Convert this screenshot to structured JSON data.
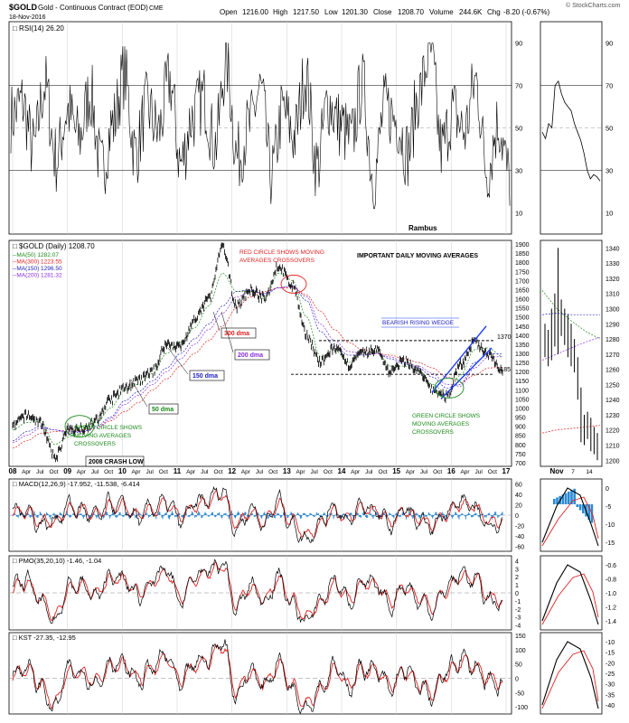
{
  "header": {
    "symbol": "$GOLD",
    "description": "Gold - Continuous Contract (EOD)",
    "exchange": "CME",
    "date": "18-Nov-2016",
    "open_label": "Open",
    "open": "1216.00",
    "high_label": "High",
    "high": "1217.50",
    "low_label": "Low",
    "low": "1201.30",
    "close_label": "Close",
    "close": "1208.70",
    "volume_label": "Volume",
    "volume": "244.6K",
    "chg_label": "Chg",
    "chg": "-8.20 (-0.67%)",
    "watermark": "© StockCharts.com"
  },
  "colors": {
    "price": "#000000",
    "ma50": "#1a8a1a",
    "ma300": "#e02020",
    "ma150": "#2020c0",
    "ma200": "#8a2be2",
    "annotation_red": "#e02020",
    "annotation_green": "#1a8a1a",
    "annotation_blue": "#2020c0",
    "annotation_purple": "#8a2be2",
    "macd_hist": "#2a8ad4"
  },
  "rsi": {
    "label": "RSI(14)",
    "value": "26.20",
    "ticks": [
      "90",
      "70",
      "50",
      "30",
      "10"
    ],
    "tick_values": [
      90,
      70,
      50,
      30,
      10
    ],
    "range": [
      0,
      100
    ],
    "overbought": 70,
    "oversold": 30,
    "note": "Rambus"
  },
  "price_panel": {
    "label": "$GOLD (Daily)",
    "value": "1208.70",
    "ma_labels": [
      {
        "text": "MA(50)",
        "value": "1282.07",
        "color": "#1a8a1a"
      },
      {
        "text": "MA(300)",
        "value": "1223.55",
        "color": "#e02020"
      },
      {
        "text": "MA(150)",
        "value": "1296.50",
        "color": "#2020c0"
      },
      {
        "text": "MA(200)",
        "value": "1281.32",
        "color": "#8a2be2"
      }
    ],
    "ticks": [
      "1900",
      "1850",
      "1800",
      "1750",
      "1700",
      "1650",
      "1600",
      "1550",
      "1500",
      "1450",
      "1400",
      "1350",
      "1300",
      "1250",
      "1200",
      "1150",
      "1100",
      "1050",
      "1000",
      "950",
      "900",
      "850",
      "800",
      "750",
      "700"
    ],
    "range": [
      680,
      1920
    ],
    "levels": {
      "resistance": "1370",
      "support": "1185"
    },
    "annotations": {
      "red_circle": "RED CIRCLE SHOWS MOVING AVERAGES CROSSOVERS",
      "title": "IMPORTANT DAILY MOVING AVERAGES",
      "wedge": "BEARISH RISING WEDGE",
      "green_left": "GREEN CIRCLE SHOWS MOVING AVERAGES CROSSOVERS",
      "green_right": "GREEN CIRCLE SHOWS MOVING AVERAGES CROSSOVERS",
      "dma300": "300 dma",
      "dma200": "200 dma",
      "dma150": "150 dma",
      "dma50": "50 dma",
      "crash": "2008 CRASH LOW"
    }
  },
  "x_axis": {
    "labels": [
      "08",
      "Apr",
      "Jul",
      "Oct",
      "09",
      "Apr",
      "Jul",
      "Oct",
      "10",
      "Apr",
      "Jul",
      "Oct",
      "11",
      "Apr",
      "Jul",
      "Oct",
      "12",
      "Apr",
      "Jul",
      "Oct",
      "13",
      "Apr",
      "Jul",
      "Oct",
      "14",
      "Apr",
      "Jul",
      "Oct",
      "15",
      "Apr",
      "Jul",
      "Oct",
      "16",
      "Apr",
      "Jul",
      "Oct",
      "17"
    ],
    "years": [
      "08",
      "09",
      "10",
      "11",
      "12",
      "13",
      "14",
      "15",
      "16",
      "17"
    ]
  },
  "macd": {
    "label": "MACD(12,26,9)",
    "v1": "-17.952",
    "v2": "-11.538",
    "v3": "-6.414",
    "ticks": [
      "60",
      "40",
      "20",
      "0",
      "-20",
      "-40",
      "-60"
    ],
    "range": [
      -70,
      70
    ]
  },
  "pmo": {
    "label": "PMO(35,20,10)",
    "v1": "-1.46",
    "v2": "-1.04",
    "ticks": [
      "4",
      "3",
      "2",
      "1",
      "0",
      "-1",
      "-2",
      "-3",
      "-4"
    ],
    "range": [
      -4.6,
      4.6
    ]
  },
  "kst": {
    "label": "KST",
    "v1": "-27.35",
    "v2": "-12.95",
    "ticks": [
      "150",
      "100",
      "50",
      "0",
      "-50",
      "-100"
    ],
    "range": [
      -125,
      160
    ]
  },
  "side": {
    "rsi_ticks": [
      "90",
      "70",
      "50",
      "30",
      "10"
    ],
    "price_ticks": [
      "1340",
      "1330",
      "1320",
      "1310",
      "1300",
      "1290",
      "1280",
      "1270",
      "1260",
      "1250",
      "1240",
      "1230",
      "1220",
      "1210",
      "1200"
    ],
    "price_range": [
      1196,
      1345
    ],
    "x_labels": [
      "Nov",
      "7",
      "14"
    ],
    "macd_ticks": [
      "0",
      "-5",
      "-10",
      "-15"
    ],
    "pmo_ticks": [
      "-0.6",
      "-0.8",
      "-1.0",
      "-1.2",
      "-1.4"
    ],
    "kst_ticks": [
      "-10",
      "-15",
      "-20",
      "-25",
      "-30",
      "-35",
      "-40"
    ]
  },
  "chart_data": [
    {
      "type": "line",
      "title": "RSI(14)",
      "ylim": [
        0,
        100
      ],
      "series": [
        {
          "name": "RSI(14)",
          "values": [
            55,
            62,
            40,
            70,
            35,
            58,
            45,
            66,
            30,
            52,
            75,
            38,
            60,
            48,
            72,
            33,
            55,
            64,
            42,
            80,
            36,
            50,
            68,
            28,
            58,
            46,
            74,
            32,
            62,
            52,
            44,
            70,
            26,
            60,
            54,
            38,
            66,
            86,
            40,
            58,
            48,
            72,
            30,
            52,
            26.2
          ]
        }
      ]
    },
    {
      "type": "line",
      "title": "$GOLD (Daily)",
      "ylim": [
        680,
        1920
      ],
      "x": [
        "2008-01",
        "2008-04",
        "2008-07",
        "2008-10",
        "2009-01",
        "2009-04",
        "2009-07",
        "2009-10",
        "2010-01",
        "2010-04",
        "2010-07",
        "2010-10",
        "2011-01",
        "2011-04",
        "2011-07",
        "2011-09",
        "2011-12",
        "2012-04",
        "2012-07",
        "2012-10",
        "2013-01",
        "2013-04",
        "2013-07",
        "2013-10",
        "2014-01",
        "2014-04",
        "2014-07",
        "2014-10",
        "2015-01",
        "2015-04",
        "2015-07",
        "2015-12",
        "2016-03",
        "2016-07",
        "2016-10",
        "2016-11"
      ],
      "series": [
        {
          "name": "$GOLD",
          "values": [
            900,
            960,
            920,
            730,
            880,
            890,
            930,
            1050,
            1110,
            1150,
            1200,
            1350,
            1340,
            1480,
            1600,
            1880,
            1560,
            1650,
            1600,
            1780,
            1670,
            1400,
            1250,
            1330,
            1240,
            1300,
            1320,
            1200,
            1260,
            1200,
            1100,
            1060,
            1240,
            1360,
            1300,
            1208.7
          ]
        },
        {
          "name": "MA(50)",
          "values": [
            880,
            920,
            930,
            800,
            840,
            900,
            920,
            1000,
            1100,
            1130,
            1190,
            1300,
            1360,
            1440,
            1560,
            1740,
            1640,
            1640,
            1600,
            1740,
            1700,
            1500,
            1280,
            1320,
            1250,
            1300,
            1310,
            1230,
            1230,
            1210,
            1130,
            1080,
            1180,
            1320,
            1330,
            1282.07
          ]
        },
        {
          "name": "MA(300)",
          "values": [
            780,
            820,
            860,
            870,
            880,
            880,
            890,
            930,
            980,
            1030,
            1100,
            1160,
            1230,
            1300,
            1370,
            1450,
            1550,
            1610,
            1640,
            1660,
            1660,
            1620,
            1530,
            1430,
            1360,
            1320,
            1300,
            1290,
            1270,
            1250,
            1220,
            1170,
            1140,
            1180,
            1220,
            1223.55
          ]
        },
        {
          "name": "MA(150)",
          "values": [
            820,
            870,
            900,
            880,
            860,
            870,
            900,
            950,
            1040,
            1090,
            1150,
            1220,
            1300,
            1380,
            1460,
            1560,
            1640,
            1650,
            1620,
            1660,
            1670,
            1590,
            1420,
            1340,
            1290,
            1290,
            1300,
            1270,
            1240,
            1220,
            1170,
            1110,
            1130,
            1250,
            1300,
            1296.5
          ]
        },
        {
          "name": "MA(200)",
          "values": [
            810,
            850,
            890,
            880,
            870,
            870,
            890,
            940,
            1020,
            1070,
            1130,
            1200,
            1270,
            1350,
            1430,
            1520,
            1610,
            1640,
            1630,
            1660,
            1670,
            1610,
            1460,
            1370,
            1310,
            1300,
            1300,
            1280,
            1250,
            1230,
            1190,
            1130,
            1120,
            1220,
            1280,
            1281.32
          ]
        }
      ]
    },
    {
      "type": "line",
      "title": "MACD(12,26,9)",
      "ylim": [
        -70,
        70
      ],
      "series": [
        {
          "name": "MACD",
          "values": [
            5,
            12,
            -20,
            -10,
            18,
            8,
            -5,
            22,
            14,
            -8,
            16,
            24,
            -12,
            20,
            30,
            50,
            -30,
            14,
            -18,
            28,
            -20,
            -48,
            -10,
            18,
            -14,
            20,
            6,
            -22,
            14,
            -16,
            -24,
            10,
            26,
            14,
            -18,
            -17.95
          ]
        },
        {
          "name": "Signal",
          "values": [
            3,
            9,
            -12,
            -12,
            10,
            10,
            -2,
            16,
            15,
            -2,
            10,
            20,
            -4,
            14,
            26,
            42,
            -16,
            6,
            -12,
            20,
            -10,
            -38,
            -18,
            10,
            -8,
            14,
            8,
            -14,
            8,
            -10,
            -20,
            4,
            20,
            16,
            -10,
            -11.54
          ]
        }
      ]
    },
    {
      "type": "line",
      "title": "PMO(35,20,10)",
      "ylim": [
        -4.6,
        4.6
      ],
      "series": [
        {
          "name": "PMO",
          "values": [
            0.6,
            1.6,
            -1.2,
            -3.8,
            1.2,
            0.8,
            -0.6,
            2.2,
            1.4,
            -0.4,
            1.6,
            2.8,
            -1.2,
            2.0,
            2.6,
            3.8,
            -2.2,
            1.0,
            -1.0,
            2.0,
            -1.6,
            -3.6,
            -1.0,
            1.6,
            -1.0,
            1.4,
            0.6,
            -1.6,
            1.2,
            -1.0,
            -2.0,
            0.6,
            2.4,
            1.6,
            -0.8,
            -1.46
          ]
        },
        {
          "name": "Signal",
          "values": [
            0.4,
            1.2,
            -0.8,
            -3.0,
            0.6,
            0.9,
            -0.2,
            1.8,
            1.5,
            0.0,
            1.2,
            2.4,
            -0.6,
            1.6,
            2.4,
            3.4,
            -1.4,
            0.6,
            -0.6,
            1.6,
            -1.0,
            -3.0,
            -1.4,
            1.0,
            -0.6,
            1.0,
            0.8,
            -1.0,
            0.8,
            -0.6,
            -1.6,
            0.2,
            2.0,
            1.8,
            -0.4,
            -1.04
          ]
        }
      ]
    },
    {
      "type": "line",
      "title": "KST",
      "ylim": [
        -125,
        160
      ],
      "series": [
        {
          "name": "KST",
          "values": [
            20,
            40,
            -30,
            -110,
            30,
            20,
            -20,
            60,
            40,
            -10,
            40,
            80,
            -30,
            50,
            70,
            130,
            -60,
            30,
            -30,
            60,
            -40,
            -100,
            -30,
            40,
            -30,
            40,
            20,
            -40,
            30,
            -30,
            -60,
            20,
            70,
            40,
            -20,
            -27.35
          ]
        },
        {
          "name": "Signal",
          "values": [
            15,
            32,
            -20,
            -90,
            15,
            24,
            -8,
            48,
            42,
            0,
            32,
            70,
            -15,
            40,
            64,
            115,
            -40,
            20,
            -20,
            48,
            -25,
            -85,
            -40,
            28,
            -20,
            30,
            22,
            -28,
            22,
            -20,
            -50,
            10,
            58,
            44,
            -8,
            -12.95
          ]
        }
      ]
    }
  ]
}
